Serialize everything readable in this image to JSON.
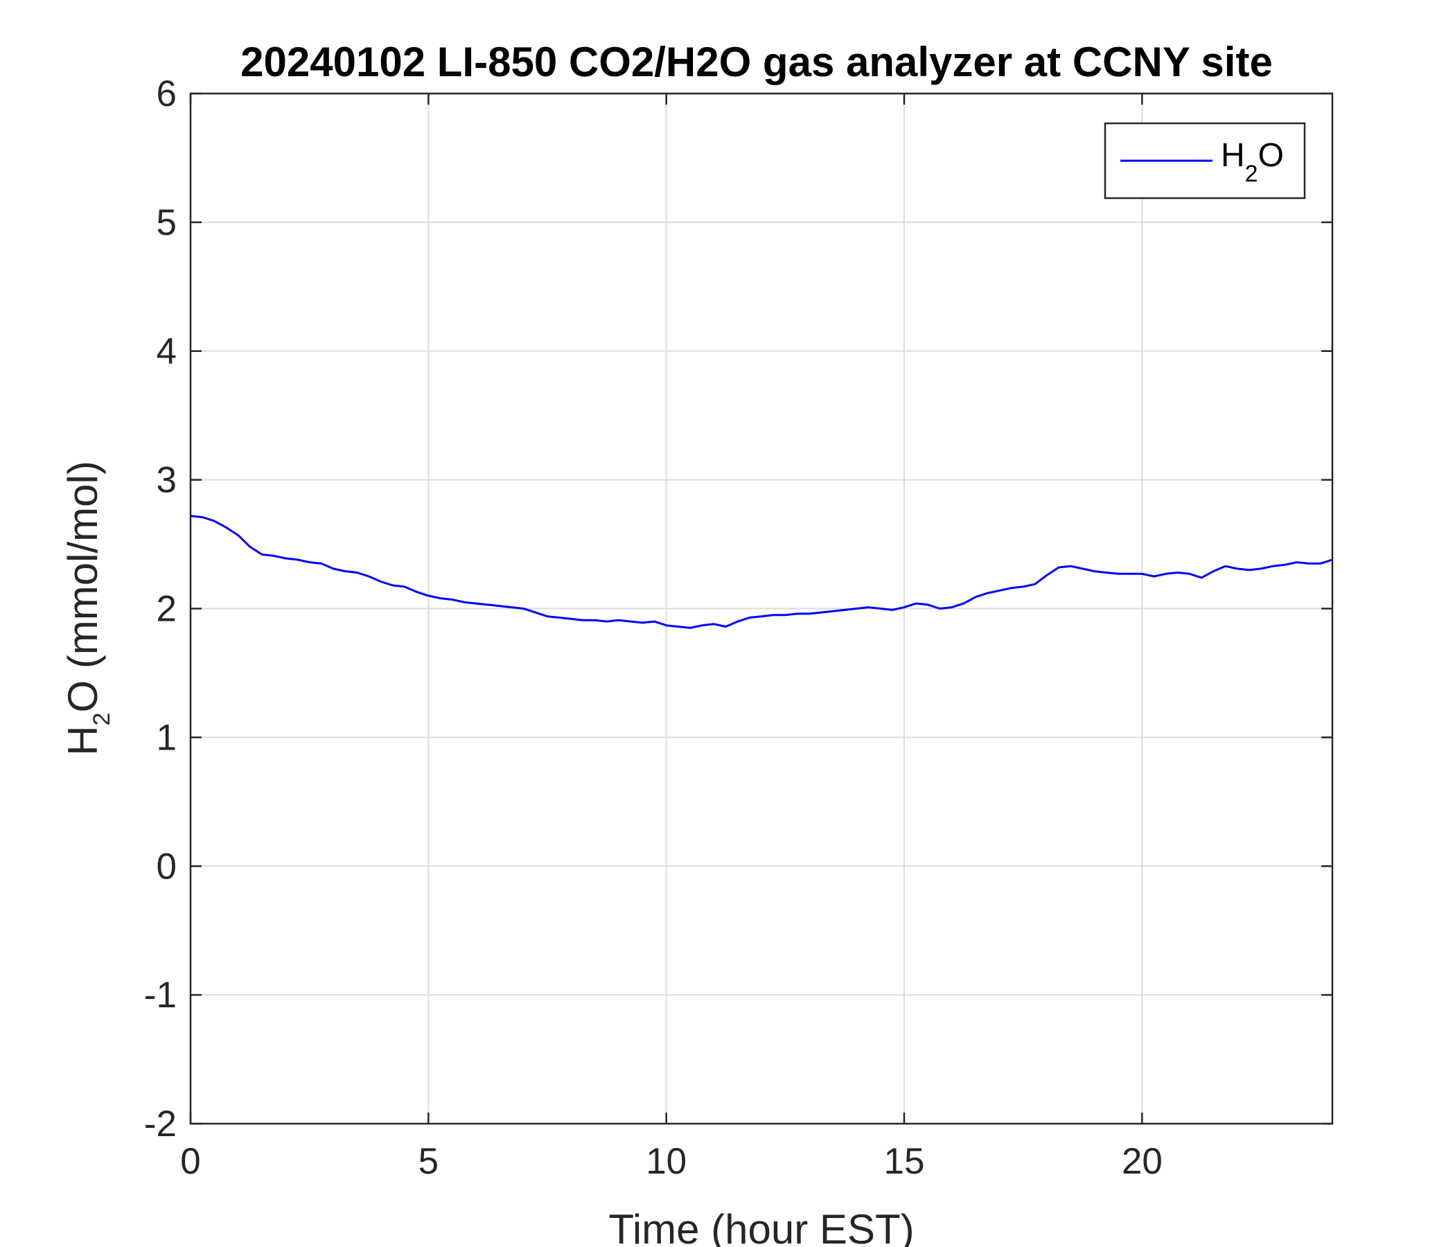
{
  "chart_data": {
    "type": "line",
    "title": "20240102 LI-850 CO2/H2O gas analyzer at CCNY site",
    "xlabel": "Time (hour EST)",
    "ylabel": {
      "main": "H",
      "sub": "2",
      "rest": "O (mmol/mol)"
    },
    "xlim": [
      0,
      24
    ],
    "ylim": [
      -2,
      6
    ],
    "xticks": [
      0,
      5,
      10,
      15,
      20
    ],
    "yticks": [
      -2,
      -1,
      0,
      1,
      2,
      3,
      4,
      5,
      6
    ],
    "grid": true,
    "legend": {
      "position": "top-right",
      "entries": [
        {
          "main": "H",
          "sub": "2",
          "rest": "O"
        }
      ]
    },
    "series": [
      {
        "name": "H2O",
        "color": "#0000ff",
        "x": [
          0,
          0.25,
          0.5,
          0.75,
          1.0,
          1.25,
          1.5,
          1.75,
          2.0,
          2.25,
          2.5,
          2.75,
          3.0,
          3.25,
          3.5,
          3.75,
          4.0,
          4.25,
          4.5,
          4.75,
          5.0,
          5.25,
          5.5,
          5.75,
          6.0,
          6.25,
          6.5,
          6.75,
          7.0,
          7.25,
          7.5,
          7.75,
          8.0,
          8.25,
          8.5,
          8.75,
          9.0,
          9.25,
          9.5,
          9.75,
          10.0,
          10.25,
          10.5,
          10.75,
          11.0,
          11.25,
          11.5,
          11.75,
          12.0,
          12.25,
          12.5,
          12.75,
          13.0,
          13.25,
          13.5,
          13.75,
          14.0,
          14.25,
          14.5,
          14.75,
          15.0,
          15.25,
          15.5,
          15.75,
          16.0,
          16.25,
          16.5,
          16.75,
          17.0,
          17.25,
          17.5,
          17.75,
          18.0,
          18.25,
          18.5,
          18.75,
          19.0,
          19.25,
          19.5,
          19.75,
          20.0,
          20.25,
          20.5,
          20.75,
          21.0,
          21.25,
          21.5,
          21.75,
          22.0,
          22.25,
          22.5,
          22.75,
          23.0,
          23.25,
          23.5,
          23.75,
          24.0
        ],
        "y": [
          2.72,
          2.71,
          2.68,
          2.63,
          2.57,
          2.48,
          2.42,
          2.41,
          2.39,
          2.38,
          2.36,
          2.35,
          2.31,
          2.29,
          2.28,
          2.25,
          2.21,
          2.18,
          2.17,
          2.13,
          2.1,
          2.08,
          2.07,
          2.05,
          2.04,
          2.03,
          2.02,
          2.01,
          2.0,
          1.97,
          1.94,
          1.93,
          1.92,
          1.91,
          1.91,
          1.9,
          1.91,
          1.9,
          1.89,
          1.9,
          1.87,
          1.86,
          1.85,
          1.87,
          1.88,
          1.86,
          1.9,
          1.93,
          1.94,
          1.95,
          1.95,
          1.96,
          1.96,
          1.97,
          1.98,
          1.99,
          2.0,
          2.01,
          2.0,
          1.99,
          2.01,
          2.04,
          2.03,
          2.0,
          2.01,
          2.04,
          2.09,
          2.12,
          2.14,
          2.16,
          2.17,
          2.19,
          2.26,
          2.32,
          2.33,
          2.31,
          2.29,
          2.28,
          2.27,
          2.27,
          2.27,
          2.25,
          2.27,
          2.28,
          2.27,
          2.24,
          2.29,
          2.33,
          2.31,
          2.3,
          2.31,
          2.33,
          2.34,
          2.36,
          2.35,
          2.35,
          2.38
        ]
      }
    ]
  }
}
